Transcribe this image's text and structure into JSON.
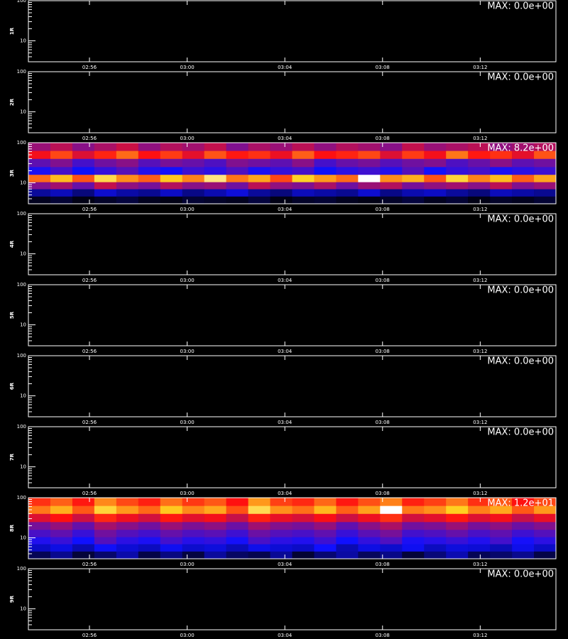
{
  "chart_data": [
    {
      "type": "heatmap",
      "ylabel": "1R",
      "max_label": "MAX: 0.0e+00",
      "log_y": true,
      "xlim": [
        173.5,
        195.1
      ],
      "xticks": [
        {
          "value": 176,
          "label": "02:56"
        },
        {
          "value": 180,
          "label": "03:00"
        },
        {
          "value": 184,
          "label": "03:04"
        },
        {
          "value": 188,
          "label": "03:08"
        },
        {
          "value": 192,
          "label": "03:12"
        }
      ],
      "ylim": [
        3,
        100
      ],
      "yticks": [
        10,
        100
      ],
      "y_minor_ticks": [
        3,
        4,
        5,
        6,
        7,
        8,
        9,
        20,
        30,
        40,
        50,
        60,
        70,
        80,
        90
      ]
    },
    {
      "type": "heatmap",
      "ylabel": "2R",
      "max_label": "MAX: 0.0e+00",
      "log_y": true,
      "xlim": [
        173.5,
        195.1
      ],
      "xticks": [
        {
          "value": 176,
          "label": "02:56"
        },
        {
          "value": 180,
          "label": "03:00"
        },
        {
          "value": 184,
          "label": "03:04"
        },
        {
          "value": 188,
          "label": "03:08"
        },
        {
          "value": 192,
          "label": "03:12"
        }
      ],
      "ylim": [
        3,
        100
      ],
      "yticks": [
        10,
        100
      ],
      "y_minor_ticks": [
        3,
        4,
        5,
        6,
        7,
        8,
        9,
        20,
        30,
        40,
        50,
        60,
        70,
        80,
        90
      ]
    },
    {
      "type": "heatmap",
      "ylabel": "3R",
      "max_label": "MAX: 8.2e+00",
      "log_y": true,
      "xlim": [
        173.5,
        195.1
      ],
      "xticks": [
        {
          "value": 176,
          "label": "02:56"
        },
        {
          "value": 180,
          "label": "03:00"
        },
        {
          "value": 184,
          "label": "03:04"
        },
        {
          "value": 188,
          "label": "03:08"
        },
        {
          "value": 192,
          "label": "03:12"
        }
      ],
      "ylim": [
        3,
        100
      ],
      "yticks": [
        10,
        100
      ],
      "y_minor_ticks": [
        3,
        4,
        5,
        6,
        7,
        8,
        9,
        20,
        30,
        40,
        50,
        60,
        70,
        80,
        90
      ],
      "zlim": [
        0,
        8.2
      ],
      "colormap": [
        {
          "stop": 0,
          "color": "#000000"
        },
        {
          "stop": 0.3,
          "color": "#1010ff"
        },
        {
          "stop": 0.65,
          "color": "#ff1010"
        },
        {
          "stop": 0.85,
          "color": "#ffd020"
        },
        {
          "stop": 1,
          "color": "#ffffff"
        }
      ],
      "x_bins": [
        173.5,
        174.4,
        175.3,
        176.2,
        177.1,
        178.0,
        178.9,
        179.8,
        180.7,
        181.6,
        182.5,
        183.4,
        184.3,
        185.2,
        186.1,
        187.0,
        187.9,
        188.8,
        189.7,
        190.6,
        191.5,
        192.4,
        193.3,
        194.2,
        195.1
      ],
      "y_bins": [
        3,
        4.6,
        7,
        10.5,
        16,
        25,
        40,
        63,
        100
      ],
      "values": [
        [
          0.3,
          0.5,
          0.2,
          0.4,
          0.6,
          0.3,
          0.2,
          0.5,
          0.4,
          0.3,
          0.6,
          0.2,
          0.4,
          0.5,
          0.3,
          0.2,
          0.4,
          0.6,
          0.3,
          0.5,
          0.2,
          0.4,
          0.3,
          0.5
        ],
        [
          1.5,
          1.8,
          1.2,
          2.0,
          1.6,
          1.4,
          1.9,
          1.3,
          1.7,
          2.1,
          1.5,
          1.2,
          1.8,
          1.6,
          1.4,
          2.0,
          1.3,
          1.7,
          1.9,
          1.5,
          1.2,
          1.8,
          1.6,
          1.4
        ],
        [
          3.8,
          4.2,
          3.5,
          4.6,
          4.0,
          3.7,
          4.4,
          3.9,
          4.1,
          3.6,
          4.5,
          4.0,
          3.8,
          4.3,
          3.6,
          4.1,
          4.4,
          3.7,
          4.0,
          4.2,
          3.9,
          4.5,
          3.8,
          4.1
        ],
        [
          6.1,
          6.8,
          5.9,
          7.2,
          6.4,
          6.0,
          6.9,
          6.3,
          7.5,
          6.2,
          6.6,
          5.8,
          7.0,
          6.5,
          6.1,
          8.2,
          6.4,
          6.7,
          5.9,
          7.1,
          6.3,
          6.8,
          6.0,
          6.6
        ],
        [
          2.6,
          3.1,
          2.4,
          2.9,
          3.3,
          2.7,
          2.5,
          3.0,
          2.8,
          3.2,
          2.6,
          2.9,
          3.1,
          2.4,
          2.8,
          3.0,
          2.7,
          3.3,
          2.5,
          2.9,
          3.1,
          2.6,
          2.8,
          3.0
        ],
        [
          3.4,
          3.8,
          3.1,
          3.6,
          3.9,
          3.3,
          3.7,
          3.5,
          3.2,
          3.8,
          3.6,
          3.4,
          3.9,
          3.1,
          3.5,
          3.7,
          3.3,
          3.6,
          3.8,
          3.2,
          3.5,
          3.9,
          3.4,
          3.6
        ],
        [
          5.2,
          5.8,
          4.9,
          5.5,
          6.1,
          5.3,
          5.7,
          5.0,
          5.9,
          5.4,
          5.6,
          5.1,
          6.0,
          5.3,
          5.5,
          5.8,
          4.9,
          5.7,
          5.2,
          6.2,
          5.4,
          5.6,
          5.0,
          5.9
        ],
        [
          4.1,
          4.5,
          3.9,
          4.3,
          4.7,
          4.0,
          4.4,
          4.2,
          4.6,
          3.8,
          4.3,
          4.1,
          4.5,
          4.0,
          4.4,
          4.2,
          3.9,
          4.6,
          4.1,
          4.3,
          4.5,
          4.0,
          4.2,
          4.4
        ]
      ]
    },
    {
      "type": "heatmap",
      "ylabel": "4R",
      "max_label": "MAX: 0.0e+00",
      "log_y": true,
      "xlim": [
        173.5,
        195.1
      ],
      "xticks": [
        {
          "value": 176,
          "label": "02:56"
        },
        {
          "value": 180,
          "label": "03:00"
        },
        {
          "value": 184,
          "label": "03:04"
        },
        {
          "value": 188,
          "label": "03:08"
        },
        {
          "value": 192,
          "label": "03:12"
        }
      ],
      "ylim": [
        3,
        100
      ],
      "yticks": [
        10,
        100
      ],
      "y_minor_ticks": [
        3,
        4,
        5,
        6,
        7,
        8,
        9,
        20,
        30,
        40,
        50,
        60,
        70,
        80,
        90
      ]
    },
    {
      "type": "heatmap",
      "ylabel": "5R",
      "max_label": "MAX: 0.0e+00",
      "log_y": true,
      "xlim": [
        173.5,
        195.1
      ],
      "xticks": [
        {
          "value": 176,
          "label": "02:56"
        },
        {
          "value": 180,
          "label": "03:00"
        },
        {
          "value": 184,
          "label": "03:04"
        },
        {
          "value": 188,
          "label": "03:08"
        },
        {
          "value": 192,
          "label": "03:12"
        }
      ],
      "ylim": [
        3,
        100
      ],
      "yticks": [
        10,
        100
      ],
      "y_minor_ticks": [
        3,
        4,
        5,
        6,
        7,
        8,
        9,
        20,
        30,
        40,
        50,
        60,
        70,
        80,
        90
      ]
    },
    {
      "type": "heatmap",
      "ylabel": "6R",
      "max_label": "MAX: 0.0e+00",
      "log_y": true,
      "xlim": [
        173.5,
        195.1
      ],
      "xticks": [
        {
          "value": 176,
          "label": "02:56"
        },
        {
          "value": 180,
          "label": "03:00"
        },
        {
          "value": 184,
          "label": "03:04"
        },
        {
          "value": 188,
          "label": "03:08"
        },
        {
          "value": 192,
          "label": "03:12"
        }
      ],
      "ylim": [
        3,
        100
      ],
      "yticks": [
        10,
        100
      ],
      "y_minor_ticks": [
        3,
        4,
        5,
        6,
        7,
        8,
        9,
        20,
        30,
        40,
        50,
        60,
        70,
        80,
        90
      ]
    },
    {
      "type": "heatmap",
      "ylabel": "7R",
      "max_label": "MAX: 0.0e+00",
      "log_y": true,
      "xlim": [
        173.5,
        195.1
      ],
      "xticks": [
        {
          "value": 176,
          "label": "02:56"
        },
        {
          "value": 180,
          "label": "03:00"
        },
        {
          "value": 184,
          "label": "03:04"
        },
        {
          "value": 188,
          "label": "03:08"
        },
        {
          "value": 192,
          "label": "03:12"
        }
      ],
      "ylim": [
        3,
        100
      ],
      "yticks": [
        10,
        100
      ],
      "y_minor_ticks": [
        3,
        4,
        5,
        6,
        7,
        8,
        9,
        20,
        30,
        40,
        50,
        60,
        70,
        80,
        90
      ]
    },
    {
      "type": "heatmap",
      "ylabel": "8R",
      "max_label": "MAX: 1.2e+01",
      "log_y": true,
      "xlim": [
        173.5,
        195.1
      ],
      "xticks": [
        {
          "value": 176,
          "label": "02:56"
        },
        {
          "value": 180,
          "label": "03:00"
        },
        {
          "value": 184,
          "label": "03:04"
        },
        {
          "value": 188,
          "label": "03:08"
        },
        {
          "value": 192,
          "label": "03:12"
        }
      ],
      "ylim": [
        3,
        100
      ],
      "yticks": [
        10,
        100
      ],
      "y_minor_ticks": [
        3,
        4,
        5,
        6,
        7,
        8,
        9,
        20,
        30,
        40,
        50,
        60,
        70,
        80,
        90
      ],
      "zlim": [
        0,
        12
      ],
      "colormap": [
        {
          "stop": 0,
          "color": "#000000"
        },
        {
          "stop": 0.3,
          "color": "#1010ff"
        },
        {
          "stop": 0.65,
          "color": "#ff1010"
        },
        {
          "stop": 0.85,
          "color": "#ffd020"
        },
        {
          "stop": 1,
          "color": "#ffffff"
        }
      ],
      "x_bins": [
        173.5,
        174.4,
        175.3,
        176.2,
        177.1,
        178.0,
        178.9,
        179.8,
        180.7,
        181.6,
        182.5,
        183.4,
        184.3,
        185.2,
        186.1,
        187.0,
        187.9,
        188.8,
        189.7,
        190.6,
        191.5,
        192.4,
        193.3,
        194.2,
        195.1
      ],
      "y_bins": [
        3,
        4.6,
        7,
        10.5,
        16,
        25,
        40,
        63,
        100
      ],
      "values": [
        [
          1.2,
          2.0,
          0.8,
          1.5,
          2.4,
          1.0,
          1.8,
          0.9,
          2.2,
          1.4,
          1.1,
          2.1,
          0.7,
          1.6,
          2.3,
          1.3,
          1.9,
          0.8,
          1.7,
          2.5,
          1.2,
          1.5,
          2.0,
          1.0
        ],
        [
          2.8,
          3.2,
          2.5,
          3.5,
          3.0,
          2.7,
          3.4,
          2.9,
          3.1,
          2.6,
          3.3,
          3.0,
          2.8,
          3.6,
          2.5,
          3.2,
          2.9,
          3.4,
          2.7,
          3.1,
          3.0,
          2.6,
          3.3,
          2.8
        ],
        [
          3.9,
          4.3,
          3.6,
          4.8,
          4.1,
          3.8,
          4.5,
          4.0,
          4.2,
          3.7,
          4.6,
          4.1,
          3.9,
          4.4,
          3.6,
          4.2,
          4.7,
          3.8,
          4.0,
          4.3,
          3.9,
          4.5,
          3.7,
          4.1
        ],
        [
          4.6,
          5.0,
          4.3,
          5.3,
          4.8,
          4.5,
          5.1,
          4.7,
          4.9,
          4.4,
          5.2,
          4.8,
          4.6,
          5.0,
          4.3,
          4.9,
          5.4,
          4.5,
          4.7,
          5.1,
          4.6,
          5.0,
          4.4,
          4.8
        ],
        [
          5.4,
          5.9,
          5.1,
          6.2,
          5.7,
          5.3,
          6.0,
          5.5,
          5.8,
          5.2,
          6.1,
          5.6,
          5.4,
          5.9,
          5.0,
          5.7,
          6.3,
          5.3,
          5.5,
          6.0,
          5.4,
          5.8,
          5.2,
          5.6
        ],
        [
          7.2,
          7.8,
          6.9,
          8.1,
          7.5,
          7.0,
          7.9,
          7.3,
          7.6,
          6.8,
          8.0,
          7.4,
          7.1,
          7.7,
          6.9,
          7.5,
          8.2,
          7.0,
          7.3,
          7.9,
          7.2,
          7.6,
          6.8,
          7.4
        ],
        [
          9.1,
          9.8,
          8.7,
          10.4,
          9.5,
          8.9,
          10.1,
          9.3,
          9.7,
          8.6,
          10.6,
          9.4,
          9.0,
          9.9,
          8.8,
          9.6,
          12.0,
          9.1,
          9.4,
          10.2,
          9.2,
          9.7,
          8.7,
          9.5
        ],
        [
          8.2,
          8.8,
          7.9,
          9.3,
          8.5,
          8.0,
          9.0,
          8.3,
          8.7,
          7.8,
          9.5,
          8.4,
          8.1,
          8.9,
          7.9,
          8.6,
          9.2,
          8.0,
          8.4,
          9.1,
          8.2,
          8.7,
          7.8,
          8.5
        ]
      ]
    },
    {
      "type": "heatmap",
      "ylabel": "9R",
      "max_label": "MAX: 0.0e+00",
      "log_y": true,
      "xlim": [
        173.5,
        195.1
      ],
      "xticks": [
        {
          "value": 176,
          "label": "02:56"
        },
        {
          "value": 180,
          "label": "03:00"
        },
        {
          "value": 184,
          "label": "03:04"
        },
        {
          "value": 188,
          "label": "03:08"
        },
        {
          "value": 192,
          "label": "03:12"
        }
      ],
      "ylim": [
        3,
        100
      ],
      "yticks": [
        10,
        100
      ],
      "y_minor_ticks": [
        3,
        4,
        5,
        6,
        7,
        8,
        9,
        20,
        30,
        40,
        50,
        60,
        70,
        80,
        90
      ]
    }
  ]
}
